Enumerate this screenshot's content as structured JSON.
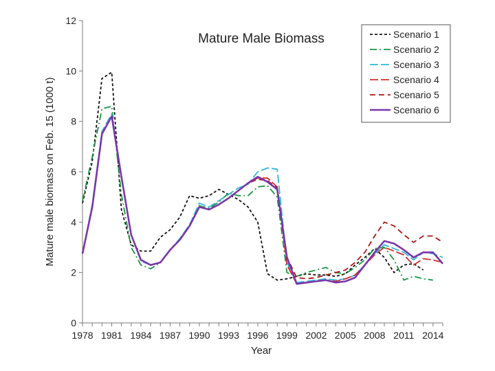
{
  "chart_data": {
    "type": "line",
    "title": "Mature Male Biomass",
    "xlabel": "Year",
    "ylabel": "Mature male biomass on Feb. 15 (1000 t)",
    "xlim": [
      1978,
      2015
    ],
    "ylim": [
      0,
      12
    ],
    "x_ticks": [
      "1978",
      "1981",
      "1984",
      "1987",
      "1990",
      "1993",
      "1996",
      "1999",
      "2002",
      "2005",
      "2008",
      "2011",
      "2014"
    ],
    "y_ticks": [
      "0",
      "2",
      "4",
      "6",
      "8",
      "10",
      "12"
    ],
    "x": [
      1978,
      1979,
      1980,
      1981,
      1982,
      1983,
      1984,
      1985,
      1986,
      1987,
      1988,
      1989,
      1990,
      1991,
      1992,
      1993,
      1994,
      1995,
      1996,
      1997,
      1998,
      1999,
      2000,
      2001,
      2002,
      2003,
      2004,
      2005,
      2006,
      2007,
      2008,
      2009,
      2010,
      2011,
      2012,
      2013,
      2014,
      2015
    ],
    "legend_position": "top-right",
    "series": [
      {
        "name": "Scenario 1",
        "color": "#111111",
        "dash": "4 3",
        "values": [
          4.75,
          6.4,
          9.7,
          9.95,
          4.5,
          3.1,
          2.85,
          2.85,
          3.4,
          3.7,
          4.2,
          5.05,
          4.95,
          5.05,
          5.3,
          5.1,
          4.9,
          4.6,
          4.0,
          1.95,
          1.7,
          1.75,
          1.85,
          1.95,
          1.9,
          1.9,
          1.85,
          1.95,
          2.3,
          2.6,
          2.95,
          2.6,
          2.0,
          2.3,
          2.35,
          2.1,
          null,
          null
        ]
      },
      {
        "name": "Scenario 2",
        "color": "#1a9640",
        "dash": "10 4 2 4",
        "values": [
          4.85,
          6.6,
          8.5,
          8.6,
          5.1,
          3.0,
          2.3,
          2.15,
          2.4,
          2.9,
          3.3,
          3.85,
          4.65,
          4.55,
          4.8,
          5.15,
          5.05,
          5.05,
          5.4,
          5.45,
          5.0,
          2.0,
          1.85,
          2.0,
          2.1,
          2.2,
          2.0,
          1.95,
          2.2,
          2.5,
          2.95,
          3.0,
          2.5,
          1.7,
          1.85,
          1.75,
          1.7,
          null
        ]
      },
      {
        "name": "Scenario 3",
        "color": "#2eb6d8",
        "dash": "12 4",
        "values": [
          2.75,
          4.7,
          7.6,
          8.3,
          5.8,
          3.5,
          2.45,
          2.3,
          2.4,
          2.9,
          3.35,
          3.9,
          4.75,
          4.6,
          4.85,
          5.1,
          5.35,
          5.5,
          6.0,
          6.15,
          6.1,
          2.4,
          1.6,
          1.65,
          1.7,
          1.75,
          1.7,
          1.75,
          1.9,
          2.3,
          2.75,
          3.1,
          2.95,
          2.8,
          2.5,
          2.8,
          2.75,
          2.6
        ]
      },
      {
        "name": "Scenario 4",
        "color": "#d22c2c",
        "dash": "12 4",
        "values": [
          2.75,
          4.6,
          7.5,
          8.2,
          5.8,
          3.5,
          2.5,
          2.3,
          2.4,
          2.9,
          3.3,
          3.85,
          4.6,
          4.5,
          4.7,
          4.95,
          5.25,
          5.55,
          5.75,
          5.75,
          5.4,
          2.3,
          1.55,
          1.6,
          1.65,
          1.7,
          1.65,
          1.75,
          1.9,
          2.3,
          2.7,
          3.0,
          2.85,
          2.7,
          2.3,
          2.55,
          2.5,
          2.4
        ]
      },
      {
        "name": "Scenario 5",
        "color": "#b01515",
        "dash": "8 5",
        "values": [
          2.75,
          4.6,
          7.5,
          8.2,
          5.8,
          3.5,
          2.5,
          2.3,
          2.4,
          2.9,
          3.3,
          3.85,
          4.6,
          4.5,
          4.7,
          4.95,
          5.25,
          5.55,
          5.7,
          5.65,
          5.35,
          2.6,
          1.8,
          1.75,
          1.8,
          1.9,
          2.0,
          2.1,
          2.4,
          2.8,
          3.45,
          4.0,
          3.85,
          3.5,
          3.2,
          3.45,
          3.45,
          3.2
        ]
      },
      {
        "name": "Scenario 6",
        "color": "#7b35a8",
        "dash": "",
        "values": [
          2.75,
          4.6,
          7.5,
          8.2,
          5.8,
          3.5,
          2.5,
          2.3,
          2.4,
          2.9,
          3.3,
          3.85,
          4.6,
          4.5,
          4.7,
          4.95,
          5.25,
          5.55,
          5.8,
          5.6,
          5.3,
          2.6,
          1.55,
          1.6,
          1.65,
          1.7,
          1.6,
          1.65,
          1.8,
          2.3,
          2.8,
          3.25,
          3.15,
          2.9,
          2.6,
          2.8,
          2.8,
          2.35
        ]
      }
    ]
  }
}
